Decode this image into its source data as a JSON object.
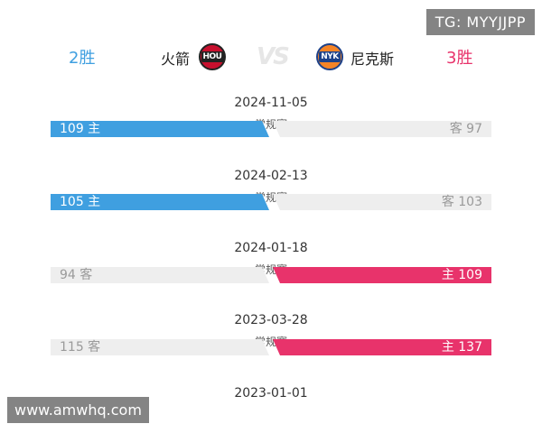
{
  "watermark_top": "TG: MYYJJPP",
  "watermark_bottom": "www.amwhq.com",
  "header": {
    "left_wins": "2胜",
    "left_team": "火箭",
    "left_logo_text": "HOU",
    "vs": "VS",
    "right_logo_text": "NYK",
    "right_team": "尼克斯",
    "right_wins": "3胜"
  },
  "colors": {
    "home_left": "#3f9fe0",
    "home_right": "#e8336b",
    "away": "#eeeeee"
  },
  "games": [
    {
      "date": "2024-11-05",
      "type": "常规赛",
      "left_text": "109 主",
      "right_text": "客 97"
    },
    {
      "date": "2024-02-13",
      "type": "常规赛",
      "left_text": "105 主",
      "right_text": "客 103"
    },
    {
      "date": "2024-01-18",
      "type": "常规赛",
      "left_text": "94 客",
      "right_text": "主 109"
    },
    {
      "date": "2023-03-28",
      "type": "常规赛",
      "left_text": "115 客",
      "right_text": "主 137"
    },
    {
      "date": "2023-01-01"
    }
  ]
}
